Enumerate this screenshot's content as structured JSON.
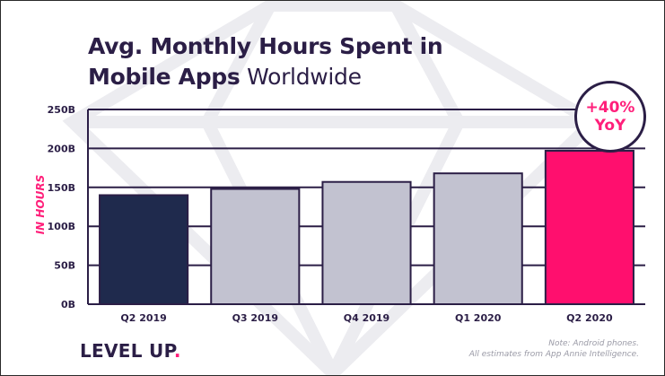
{
  "title": {
    "bold_line1": "Avg. Monthly Hours Spent in",
    "bold_line2": "Mobile Apps",
    "light_line2": " Worldwide"
  },
  "brand": {
    "name": "LEVEL UP",
    "dot": "."
  },
  "note": {
    "line1": "Note: Android phones.",
    "line2": "All estimates from App Annie Intelligence."
  },
  "badge": {
    "line1": "+40%",
    "line2": "YoY"
  },
  "colors": {
    "title": "#2b1e46",
    "accent": "#ff1f7a",
    "bar_default": "#c2c2d0",
    "bar_first": "#1f2a4d",
    "bar_last": "#ff0f6e"
  },
  "chart_data": {
    "type": "bar",
    "title": "Avg. Monthly Hours Spent in Mobile Apps Worldwide",
    "ylabel": "IN HOURS",
    "xlabel": "",
    "categories": [
      "Q2 2019",
      "Q3 2019",
      "Q4 2019",
      "Q1 2020",
      "Q2 2020"
    ],
    "values": [
      140,
      148,
      157,
      168,
      197
    ],
    "ylim": [
      0,
      250
    ],
    "yticks": [
      0,
      50,
      100,
      150,
      200,
      250
    ],
    "ytick_labels": [
      "0B",
      "50B",
      "100B",
      "150B",
      "200B",
      "250B"
    ],
    "grid": true,
    "annotation": "+40% YoY"
  }
}
